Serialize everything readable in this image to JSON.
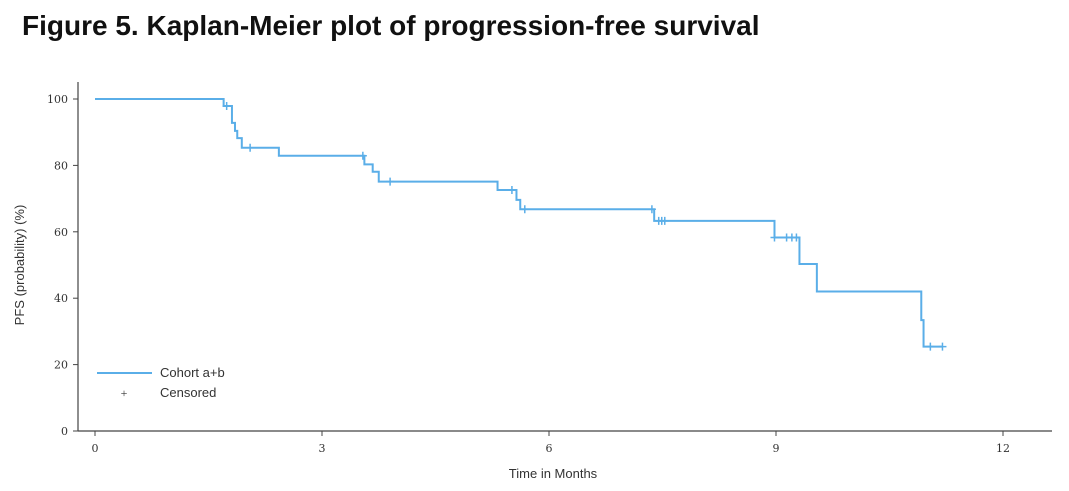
{
  "chart_data": {
    "type": "line",
    "title": "Figure 5. Kaplan-Meier plot of progression-free survival",
    "xlabel": "Time in Months",
    "ylabel": "PFS (probability) (%)",
    "xlim": [
      0,
      12
    ],
    "ylim": [
      0,
      100
    ],
    "xticks": [
      0,
      3,
      6,
      9,
      12
    ],
    "yticks": [
      0,
      20,
      40,
      60,
      80,
      100
    ],
    "grid": false,
    "legend_position": "bottom-left",
    "color": "#5aaee8",
    "series": [
      {
        "name": "Cohort a+b",
        "step": [
          [
            0,
            100
          ],
          [
            1.7,
            97.9
          ],
          [
            1.81,
            92.8
          ],
          [
            1.85,
            90.4
          ],
          [
            1.88,
            88.2
          ],
          [
            1.94,
            85.3
          ],
          [
            2.43,
            82.9
          ],
          [
            3.56,
            80.3
          ],
          [
            3.67,
            78.1
          ],
          [
            3.75,
            75.1
          ],
          [
            5.32,
            72.6
          ],
          [
            5.57,
            69.6
          ],
          [
            5.62,
            66.8
          ],
          [
            7.39,
            63.3
          ],
          [
            8.98,
            58.3
          ],
          [
            9.31,
            50.3
          ],
          [
            9.54,
            42.0
          ],
          [
            10.92,
            33.4
          ],
          [
            10.95,
            25.4
          ],
          [
            11.2,
            25.4
          ]
        ],
        "censored": [
          [
            1.74,
            97.9
          ],
          [
            2.05,
            85.3
          ],
          [
            3.54,
            82.9
          ],
          [
            3.9,
            75.1
          ],
          [
            5.51,
            72.6
          ],
          [
            5.68,
            66.8
          ],
          [
            7.36,
            66.8
          ],
          [
            7.45,
            63.3
          ],
          [
            7.49,
            63.3
          ],
          [
            7.53,
            63.3
          ],
          [
            8.98,
            58.3
          ],
          [
            9.14,
            58.3
          ],
          [
            9.21,
            58.3
          ],
          [
            9.27,
            58.3
          ],
          [
            11.04,
            25.4
          ],
          [
            11.2,
            25.4
          ]
        ]
      }
    ],
    "legend": [
      "Cohort a+b",
      "Censored"
    ]
  }
}
